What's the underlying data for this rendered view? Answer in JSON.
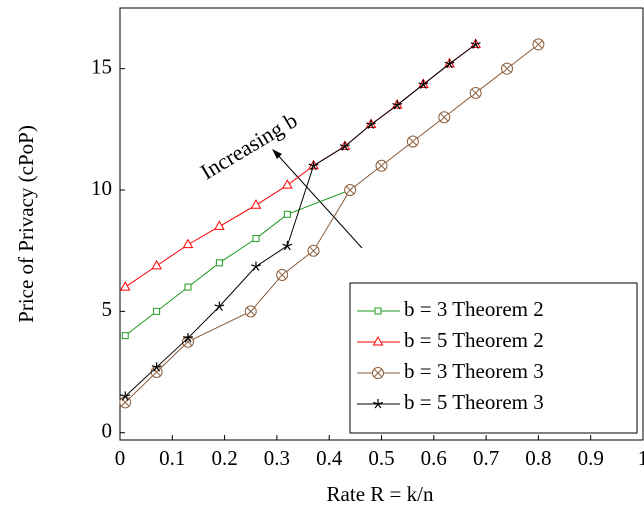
{
  "chart_data": {
    "type": "line",
    "xlabel": "Rate R = k/n",
    "ylabel": "Price of Privacy (cPoP)",
    "annotation": "Increasing b",
    "xlim": [
      0,
      1
    ],
    "ylim": [
      -0.3,
      17.5
    ],
    "xticks": [
      0,
      0.1,
      0.2,
      0.3,
      0.4,
      0.5,
      0.6,
      0.7,
      0.8,
      0.9,
      1
    ],
    "yticks": [
      0,
      5,
      10,
      15
    ],
    "legend": "lower right",
    "series": [
      {
        "name": "b = 3 Theorem 2",
        "color": "#1f9a1f",
        "marker": "square",
        "x": [
          0.01,
          0.07,
          0.13,
          0.19,
          0.26,
          0.32,
          0.44
        ],
        "values": [
          4,
          5,
          6,
          7,
          8,
          9,
          10
        ]
      },
      {
        "name": "b = 5 Theorem 2",
        "color": "#ff0000",
        "marker": "triangle",
        "x": [
          0.01,
          0.07,
          0.13,
          0.19,
          0.26,
          0.32,
          0.37,
          0.43,
          0.48,
          0.53,
          0.58,
          0.63,
          0.68
        ],
        "values": [
          6,
          6.875,
          7.75,
          8.5,
          9.375,
          10.2,
          11,
          11.8,
          12.7,
          13.5,
          14.35,
          15.2,
          16
        ]
      },
      {
        "name": "b = 3 Theorem 3",
        "color": "#8b5e3c",
        "marker": "otimes",
        "x": [
          0.01,
          0.07,
          0.13,
          0.25,
          0.31,
          0.37,
          0.44,
          0.5,
          0.56,
          0.62,
          0.68,
          0.74,
          0.8
        ],
        "values": [
          1.25,
          2.5,
          3.75,
          5,
          6.5,
          7.5,
          10,
          11,
          12,
          13,
          14,
          15,
          16
        ]
      },
      {
        "name": "b = 5 Theorem 3",
        "color": "#000000",
        "marker": "star",
        "x": [
          0.01,
          0.07,
          0.13,
          0.19,
          0.26,
          0.32,
          0.37,
          0.43,
          0.48,
          0.53,
          0.58,
          0.63,
          0.68
        ],
        "values": [
          1.5,
          2.7,
          3.9,
          5.2,
          6.85,
          7.7,
          11,
          11.8,
          12.7,
          13.5,
          14.35,
          15.2,
          16
        ]
      }
    ]
  }
}
